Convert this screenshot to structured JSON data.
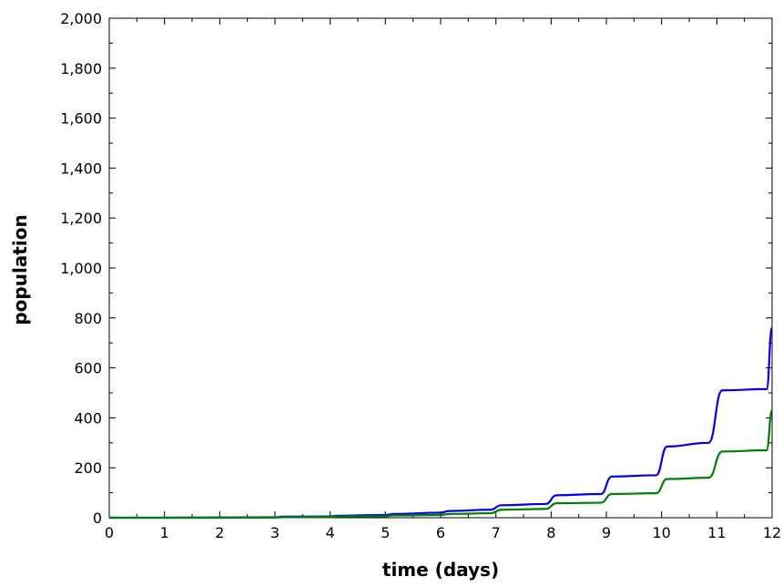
{
  "chart_data": {
    "type": "line",
    "title": "",
    "xlabel": "time (days)",
    "ylabel": "population",
    "xlim": [
      0,
      12
    ],
    "ylim": [
      0,
      2000
    ],
    "x_ticks": [
      0,
      1,
      2,
      3,
      4,
      5,
      6,
      7,
      8,
      9,
      10,
      11,
      12
    ],
    "x_tick_labels": [
      "0",
      "1",
      "2",
      "3",
      "4",
      "5",
      "6",
      "7",
      "8",
      "9",
      "10",
      "11",
      "12"
    ],
    "y_ticks": [
      0,
      200,
      400,
      600,
      800,
      1000,
      1200,
      1400,
      1600,
      1800,
      2000
    ],
    "y_tick_labels": [
      "0",
      "200",
      "400",
      "600",
      "800",
      "1,000",
      "1,200",
      "1,400",
      "1,600",
      "1,800",
      "2,000"
    ],
    "grid": false,
    "legend": "none",
    "series": [
      {
        "color": "#0000ee",
        "x": [
          0,
          1,
          2,
          3.0,
          3.15,
          4.0,
          4.15,
          5.0,
          5.15,
          6.0,
          6.15,
          6.9,
          7.1,
          7.9,
          8.1,
          8.9,
          9.1,
          9.9,
          10.1,
          10.85,
          11.1,
          11.9,
          12.0
        ],
        "y": [
          0,
          0,
          1,
          2,
          4,
          5,
          8,
          11,
          15,
          20,
          27,
          32,
          50,
          55,
          90,
          95,
          165,
          170,
          285,
          300,
          510,
          515,
          760
        ]
      },
      {
        "color": "#008000",
        "x": [
          0,
          1,
          2,
          3.0,
          3.15,
          4.0,
          4.15,
          5.0,
          5.15,
          6.0,
          6.15,
          6.9,
          7.1,
          7.9,
          8.1,
          8.9,
          9.1,
          9.9,
          10.1,
          10.85,
          11.1,
          11.9,
          12.0
        ],
        "y": [
          0,
          0,
          0,
          1,
          2,
          3,
          5,
          6,
          9,
          11,
          15,
          18,
          32,
          35,
          58,
          60,
          95,
          98,
          155,
          160,
          265,
          270,
          430
        ]
      }
    ]
  }
}
